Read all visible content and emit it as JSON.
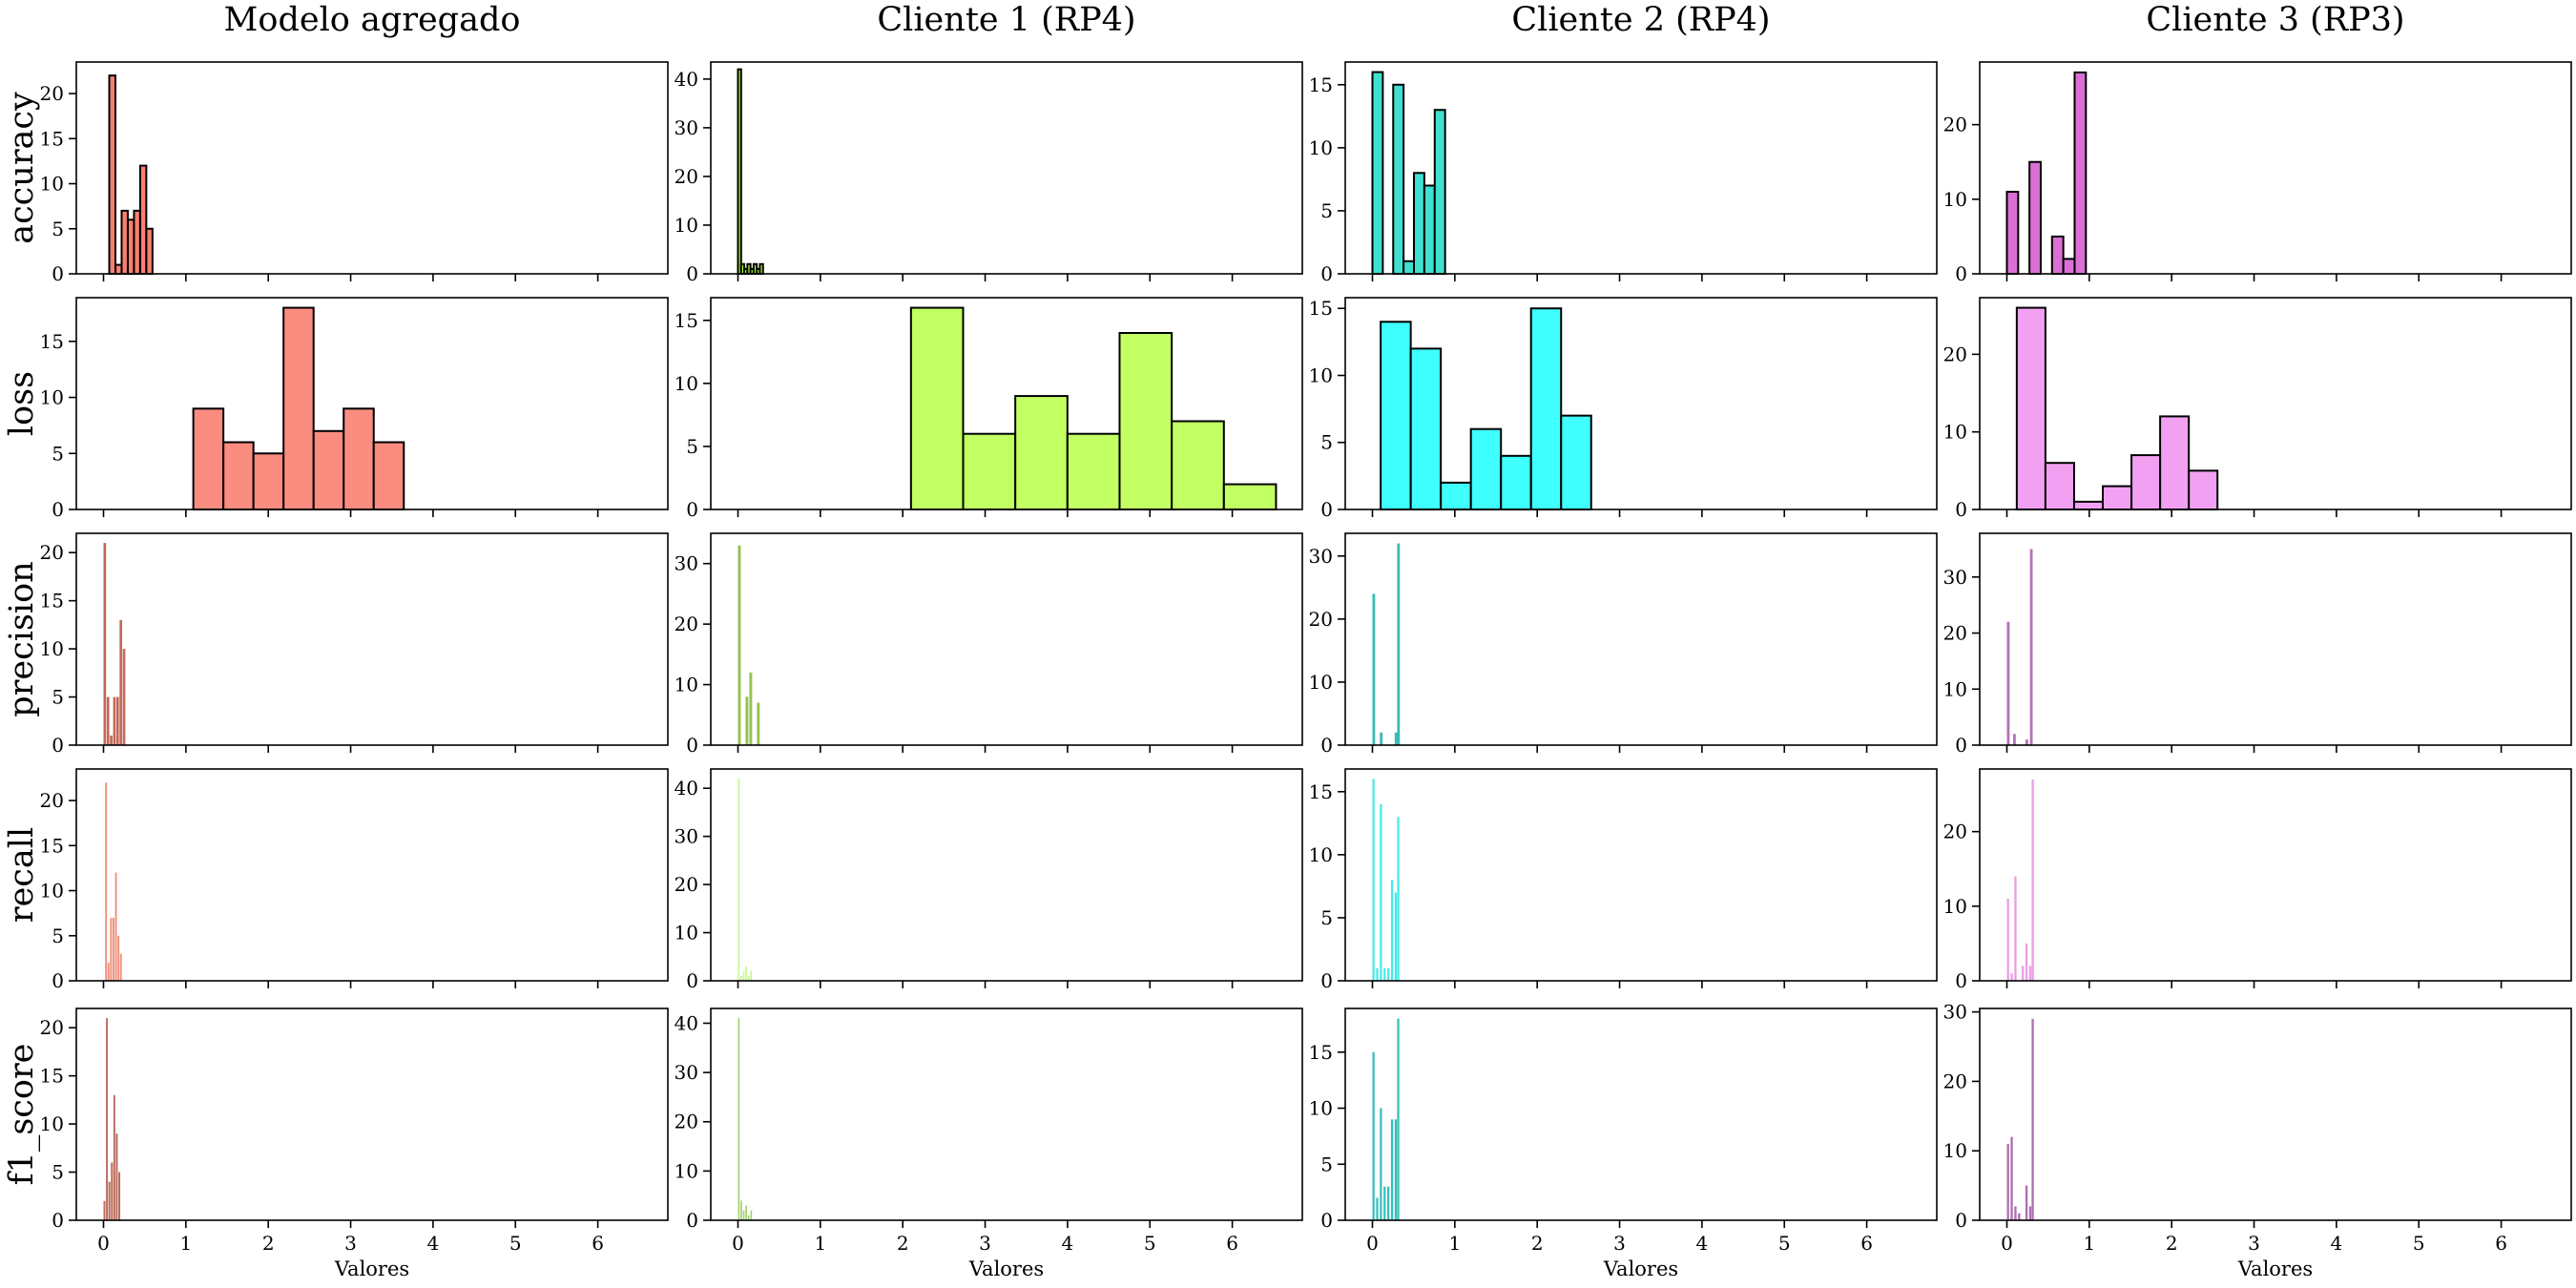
{
  "chart_data": {
    "type": "bar",
    "subtype": "histogram-grid",
    "grid": false,
    "legend": "none",
    "shared_xlim": [
      -0.33,
      6.85
    ],
    "x_ticks": [
      0,
      1,
      2,
      3,
      4,
      5,
      6
    ],
    "xlabel": "Valores",
    "columns": [
      {
        "title": "Modelo agregado",
        "base_color": "#fa8072"
      },
      {
        "title": "Cliente 1 (RP4)",
        "base_color": "#adff2f"
      },
      {
        "title": "Cliente 2 (RP4)",
        "base_color": "#00ffff"
      },
      {
        "title": "Cliente 3 (RP3)",
        "base_color": "#ee82ee"
      }
    ],
    "rows": [
      {
        "metric": "accuracy",
        "panels": [
          {
            "ylim": [
              0,
              23.5
            ],
            "yticks": [
              0,
              5,
              10,
              15,
              20
            ],
            "color": "#fa8072",
            "opacity": 1,
            "edge": true,
            "bin_width": 0.0745,
            "bins": [
              [
                0.07,
                22
              ],
              [
                0.145,
                1
              ],
              [
                0.22,
                7
              ],
              [
                0.295,
                6
              ],
              [
                0.37,
                7
              ],
              [
                0.445,
                12
              ],
              [
                0.52,
                5
              ]
            ]
          },
          {
            "ylim": [
              0,
              43.5
            ],
            "yticks": [
              0,
              10,
              20,
              30,
              40
            ],
            "color": "#adff2f",
            "opacity": 1,
            "edge": true,
            "bin_width": 0.038,
            "bins": [
              [
                0.0,
                42
              ],
              [
                0.038,
                2
              ],
              [
                0.076,
                1
              ],
              [
                0.114,
                2
              ],
              [
                0.152,
                1
              ],
              [
                0.19,
                2
              ],
              [
                0.228,
                1
              ],
              [
                0.266,
                2
              ]
            ]
          },
          {
            "ylim": [
              0,
              16.8
            ],
            "yticks": [
              0,
              5,
              10,
              15
            ],
            "color": "#40e0d0",
            "opacity": 1,
            "edge": true,
            "bin_width": 0.126,
            "bins": [
              [
                0.0,
                16
              ],
              [
                0.126,
                0
              ],
              [
                0.252,
                15
              ],
              [
                0.378,
                1
              ],
              [
                0.504,
                8
              ],
              [
                0.63,
                7
              ],
              [
                0.756,
                13
              ]
            ]
          },
          {
            "ylim": [
              0,
              28.4
            ],
            "yticks": [
              0,
              10,
              20
            ],
            "color": "#da70d6",
            "opacity": 1,
            "edge": true,
            "bin_width": 0.137,
            "bins": [
              [
                0.0,
                11
              ],
              [
                0.137,
                0
              ],
              [
                0.274,
                15
              ],
              [
                0.411,
                0
              ],
              [
                0.548,
                5
              ],
              [
                0.685,
                2
              ],
              [
                0.822,
                27
              ]
            ]
          }
        ]
      },
      {
        "metric": "loss",
        "panels": [
          {
            "ylim": [
              0,
              18.9
            ],
            "yticks": [
              0,
              5,
              10,
              15
            ],
            "color": "#fa8072",
            "opacity": 0.9,
            "edge": true,
            "bin_width": 0.365,
            "bins": [
              [
                1.09,
                9
              ],
              [
                1.455,
                6
              ],
              [
                1.82,
                5
              ],
              [
                2.185,
                18
              ],
              [
                2.55,
                7
              ],
              [
                2.915,
                9
              ],
              [
                3.28,
                6
              ]
            ]
          },
          {
            "ylim": [
              0,
              16.8
            ],
            "yticks": [
              0,
              5,
              10,
              15
            ],
            "color": "#adff2f",
            "opacity": 0.75,
            "edge": true,
            "bin_width": 0.633,
            "bins": [
              [
                2.1,
                16
              ],
              [
                2.733,
                6
              ],
              [
                3.366,
                9
              ],
              [
                3.999,
                6
              ],
              [
                4.632,
                14
              ],
              [
                5.265,
                7
              ],
              [
                5.898,
                2
              ]
            ]
          },
          {
            "ylim": [
              0,
              15.8
            ],
            "yticks": [
              0,
              5,
              10,
              15
            ],
            "color": "#00ffff",
            "opacity": 0.75,
            "edge": true,
            "bin_width": 0.365,
            "bins": [
              [
                0.1,
                14
              ],
              [
                0.465,
                12
              ],
              [
                0.83,
                2
              ],
              [
                1.195,
                6
              ],
              [
                1.56,
                4
              ],
              [
                1.925,
                15
              ],
              [
                2.29,
                7
              ]
            ]
          },
          {
            "ylim": [
              0,
              27.3
            ],
            "yticks": [
              0,
              10,
              20
            ],
            "color": "#ee82ee",
            "opacity": 0.75,
            "edge": true,
            "bin_width": 0.348,
            "bins": [
              [
                0.12,
                26
              ],
              [
                0.468,
                6
              ],
              [
                0.816,
                1
              ],
              [
                1.164,
                3
              ],
              [
                1.512,
                7
              ],
              [
                1.86,
                12
              ],
              [
                2.208,
                5
              ]
            ]
          }
        ]
      },
      {
        "metric": "precision",
        "panels": [
          {
            "ylim": [
              0,
              22
            ],
            "yticks": [
              0,
              5,
              10,
              15,
              20
            ],
            "color": "#c0614f",
            "opacity": 0.95,
            "edge": false,
            "bin_width": 0.031,
            "bins": [
              [
                0.0,
                21
              ],
              [
                0.039,
                5
              ],
              [
                0.078,
                1
              ],
              [
                0.117,
                5
              ],
              [
                0.156,
                5
              ],
              [
                0.195,
                13
              ],
              [
                0.234,
                10
              ]
            ]
          },
          {
            "ylim": [
              0,
              35
            ],
            "yticks": [
              0,
              10,
              20,
              30
            ],
            "color": "#8fbf4a",
            "opacity": 0.95,
            "edge": false,
            "bin_width": 0.034,
            "bins": [
              [
                0.0,
                33
              ],
              [
                0.046,
                0
              ],
              [
                0.092,
                8
              ],
              [
                0.138,
                12
              ],
              [
                0.184,
                0
              ],
              [
                0.23,
                7
              ]
            ]
          },
          {
            "ylim": [
              0,
              33.6
            ],
            "yticks": [
              0,
              10,
              20,
              30
            ],
            "color": "#2fb8b0",
            "opacity": 0.95,
            "edge": false,
            "bin_width": 0.033,
            "bins": [
              [
                0.0,
                24
              ],
              [
                0.09,
                2
              ],
              [
                0.18,
                0
              ],
              [
                0.27,
                2
              ],
              [
                0.3,
                32
              ]
            ]
          },
          {
            "ylim": [
              0,
              37.8
            ],
            "yticks": [
              0,
              10,
              20,
              30
            ],
            "color": "#b06ab3",
            "opacity": 0.95,
            "edge": false,
            "bin_width": 0.033,
            "bins": [
              [
                0.0,
                22
              ],
              [
                0.075,
                2
              ],
              [
                0.15,
                0
              ],
              [
                0.225,
                1
              ],
              [
                0.28,
                35
              ]
            ]
          }
        ]
      },
      {
        "metric": "recall",
        "panels": [
          {
            "ylim": [
              0,
              23.5
            ],
            "yticks": [
              0,
              5,
              10,
              15,
              20
            ],
            "color": "#ef8a76",
            "opacity": 0.95,
            "edge": false,
            "bin_width": 0.022,
            "bins": [
              [
                0.02,
                22
              ],
              [
                0.05,
                2
              ],
              [
                0.08,
                7
              ],
              [
                0.11,
                7
              ],
              [
                0.14,
                12
              ],
              [
                0.17,
                5
              ],
              [
                0.2,
                3
              ]
            ]
          },
          {
            "ylim": [
              0,
              44
            ],
            "yticks": [
              0,
              10,
              20,
              30,
              40
            ],
            "color": "#c3f58c",
            "opacity": 0.9,
            "edge": false,
            "bin_width": 0.02,
            "bins": [
              [
                0.0,
                42
              ],
              [
                0.03,
                1
              ],
              [
                0.06,
                2
              ],
              [
                0.09,
                3
              ],
              [
                0.12,
                1
              ],
              [
                0.15,
                2
              ]
            ]
          },
          {
            "ylim": [
              0,
              16.8
            ],
            "yticks": [
              0,
              5,
              10,
              15
            ],
            "color": "#40e8e8",
            "opacity": 0.95,
            "edge": false,
            "bin_width": 0.026,
            "bins": [
              [
                0.0,
                16
              ],
              [
                0.045,
                1
              ],
              [
                0.09,
                14
              ],
              [
                0.135,
                1
              ],
              [
                0.18,
                1
              ],
              [
                0.225,
                8
              ],
              [
                0.27,
                7
              ],
              [
                0.3,
                13
              ]
            ]
          },
          {
            "ylim": [
              0,
              28.4
            ],
            "yticks": [
              0,
              10,
              20
            ],
            "color": "#e79ae3",
            "opacity": 0.95,
            "edge": false,
            "bin_width": 0.027,
            "bins": [
              [
                0.0,
                11
              ],
              [
                0.045,
                1
              ],
              [
                0.09,
                14
              ],
              [
                0.135,
                0
              ],
              [
                0.18,
                2
              ],
              [
                0.225,
                5
              ],
              [
                0.27,
                2
              ],
              [
                0.3,
                27
              ]
            ]
          }
        ]
      },
      {
        "metric": "f1_score",
        "panels": [
          {
            "ylim": [
              0,
              22
            ],
            "yticks": [
              0,
              5,
              10,
              15,
              20
            ],
            "color": "#b86556",
            "opacity": 0.95,
            "edge": false,
            "bin_width": 0.023,
            "bins": [
              [
                0.0,
                2
              ],
              [
                0.03,
                21
              ],
              [
                0.06,
                4
              ],
              [
                0.09,
                6
              ],
              [
                0.12,
                13
              ],
              [
                0.15,
                9
              ],
              [
                0.18,
                5
              ]
            ]
          },
          {
            "ylim": [
              0,
              43
            ],
            "yticks": [
              0,
              10,
              20,
              30,
              40
            ],
            "color": "#9ccc68",
            "opacity": 0.9,
            "edge": false,
            "bin_width": 0.02,
            "bins": [
              [
                0.0,
                41
              ],
              [
                0.03,
                4
              ],
              [
                0.06,
                2
              ],
              [
                0.09,
                3
              ],
              [
                0.12,
                1
              ],
              [
                0.15,
                2
              ]
            ]
          },
          {
            "ylim": [
              0,
              18.9
            ],
            "yticks": [
              0,
              5,
              10,
              15
            ],
            "color": "#2bbcb6",
            "opacity": 0.95,
            "edge": false,
            "bin_width": 0.026,
            "bins": [
              [
                0.0,
                15
              ],
              [
                0.045,
                2
              ],
              [
                0.09,
                10
              ],
              [
                0.135,
                3
              ],
              [
                0.18,
                3
              ],
              [
                0.225,
                9
              ],
              [
                0.27,
                9
              ],
              [
                0.3,
                18
              ]
            ]
          },
          {
            "ylim": [
              0,
              30.5
            ],
            "yticks": [
              0,
              10,
              20,
              30
            ],
            "color": "#a967ac",
            "opacity": 0.95,
            "edge": false,
            "bin_width": 0.027,
            "bins": [
              [
                0.0,
                11
              ],
              [
                0.045,
                12
              ],
              [
                0.09,
                2
              ],
              [
                0.135,
                1
              ],
              [
                0.18,
                0
              ],
              [
                0.225,
                5
              ],
              [
                0.27,
                2
              ],
              [
                0.3,
                29
              ]
            ]
          }
        ]
      }
    ]
  }
}
